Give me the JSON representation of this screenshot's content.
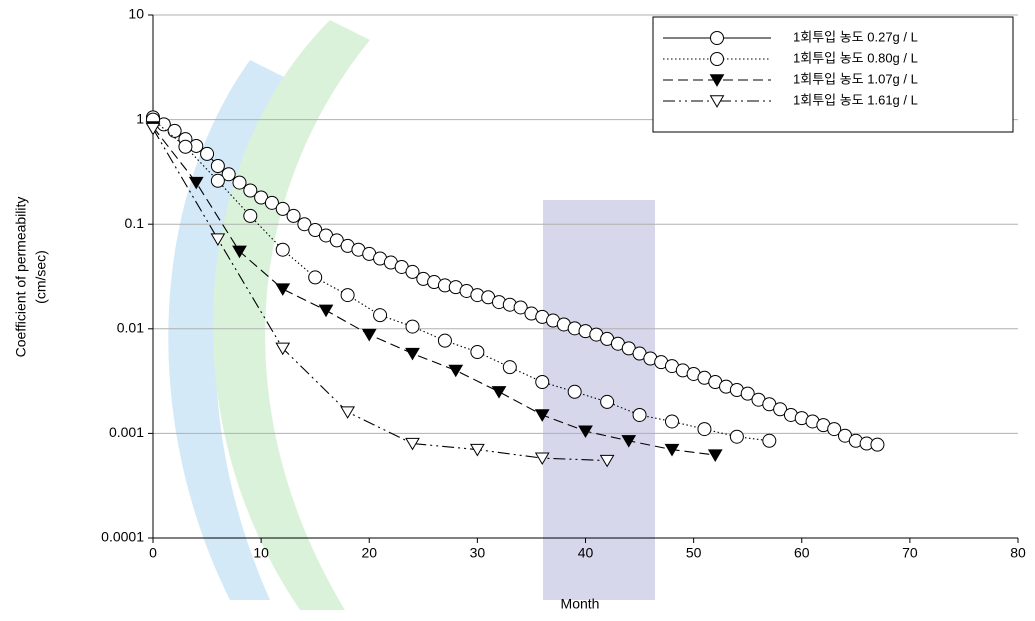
{
  "chart_data": {
    "type": "line",
    "xlabel": "Month",
    "ylabel": [
      "Coefficient of permeability",
      "(cm/sec)"
    ],
    "xlim": [
      0,
      80
    ],
    "xticks": [
      0,
      10,
      20,
      30,
      40,
      50,
      60,
      70,
      80
    ],
    "ylim": [
      0.0001,
      10
    ],
    "yticks": [
      0.0001,
      0.001,
      0.01,
      0.1,
      1,
      10
    ],
    "log_y": true,
    "grid": true,
    "legend": "upper right",
    "series": [
      {
        "name": "1회투입 농도 0.27g / L",
        "color": "#000000",
        "linestyle": "solid",
        "marker": "circle-open",
        "x": [
          0,
          1,
          2,
          3,
          4,
          5,
          6,
          7,
          8,
          9,
          10,
          11,
          12,
          13,
          14,
          15,
          16,
          17,
          18,
          19,
          20,
          21,
          22,
          23,
          24,
          25,
          26,
          27,
          28,
          29,
          30,
          31,
          32,
          33,
          34,
          35,
          36,
          37,
          38,
          39,
          40,
          41,
          42,
          43,
          44,
          45,
          46,
          47,
          48,
          49,
          50,
          51,
          52,
          53,
          54,
          55,
          56,
          57,
          58,
          59,
          60,
          61,
          62,
          63,
          64,
          65,
          66,
          67
        ],
        "values": [
          1.05,
          0.9,
          0.78,
          0.65,
          0.56,
          0.47,
          0.36,
          0.3,
          0.25,
          0.21,
          0.18,
          0.16,
          0.14,
          0.12,
          0.1,
          0.088,
          0.078,
          0.07,
          0.062,
          0.057,
          0.052,
          0.047,
          0.043,
          0.039,
          0.035,
          0.03,
          0.028,
          0.026,
          0.025,
          0.023,
          0.021,
          0.02,
          0.018,
          0.017,
          0.016,
          0.014,
          0.013,
          0.012,
          0.011,
          0.0101,
          0.0095,
          0.0088,
          0.008,
          0.0072,
          0.0065,
          0.0058,
          0.0052,
          0.0048,
          0.0044,
          0.004,
          0.0037,
          0.0034,
          0.0031,
          0.0028,
          0.0026,
          0.0024,
          0.0021,
          0.0019,
          0.0017,
          0.0015,
          0.0014,
          0.0013,
          0.0012,
          0.0011,
          0.00095,
          0.00085,
          0.0008,
          0.00078
        ]
      },
      {
        "name": "1회투입 농도 0.80g / L",
        "color": "#000000",
        "linestyle": "dotted",
        "marker": "circle-open",
        "x": [
          0,
          3,
          6,
          9,
          12,
          15,
          18,
          21,
          24,
          27,
          30,
          33,
          36,
          39,
          42,
          45,
          48,
          51,
          54,
          57
        ],
        "values": [
          1.0,
          0.55,
          0.26,
          0.12,
          0.057,
          0.031,
          0.021,
          0.0135,
          0.0105,
          0.0077,
          0.006,
          0.0043,
          0.0031,
          0.0025,
          0.002,
          0.0015,
          0.0013,
          0.0011,
          0.00093,
          0.00085
        ]
      },
      {
        "name": "1회투입 농도 1.07g / L",
        "color": "#000000",
        "linestyle": "dashed",
        "marker": "triangle-down-filled",
        "x": [
          0,
          4,
          8,
          12,
          16,
          20,
          24,
          28,
          32,
          36,
          40,
          44,
          48,
          52
        ],
        "values": [
          0.85,
          0.25,
          0.055,
          0.024,
          0.015,
          0.0088,
          0.0058,
          0.004,
          0.0025,
          0.0015,
          0.00105,
          0.00085,
          0.0007,
          0.00062
        ]
      },
      {
        "name": "1회투입 농도 1.61g / L",
        "color": "#000000",
        "linestyle": "dashdotdot",
        "marker": "triangle-down-open",
        "x": [
          0,
          6,
          12,
          18,
          24,
          30,
          36,
          42
        ],
        "values": [
          0.82,
          0.072,
          0.0065,
          0.0016,
          0.0008,
          0.0007,
          0.00058,
          0.00055
        ]
      }
    ]
  }
}
